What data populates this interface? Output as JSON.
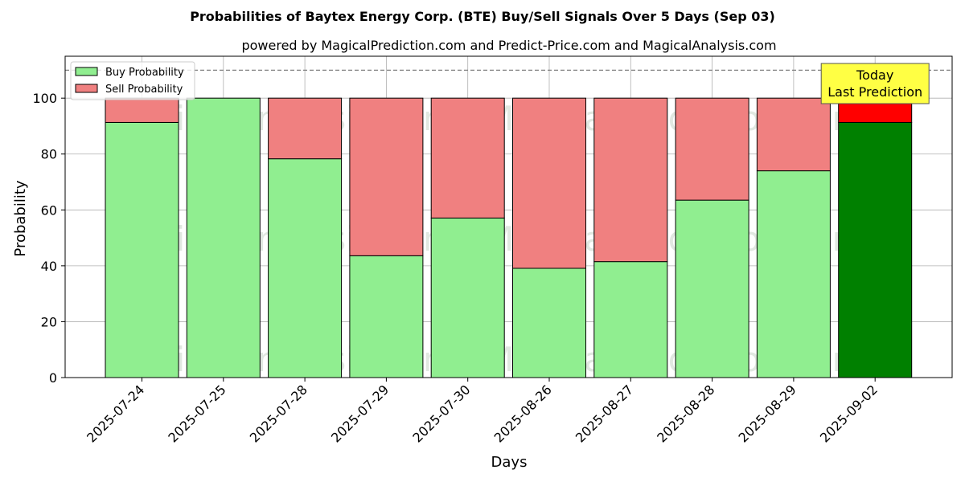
{
  "chart_data": {
    "type": "bar",
    "stacked": true,
    "title": "Probabilities of Baytex Energy Corp. (BTE) Buy/Sell Signals Over 5 Days (Sep 03)",
    "subtitle": "powered by MagicalPrediction.com and Predict-Price.com and MagicalAnalysis.com",
    "xlabel": "Days",
    "ylabel": "Probability",
    "ylim": [
      0,
      115
    ],
    "yticks": [
      0,
      20,
      40,
      60,
      80,
      100
    ],
    "reference_line": 110,
    "grid": true,
    "legend_position": "top-left",
    "categories": [
      "2025-07-24",
      "2025-07-25",
      "2025-07-28",
      "2025-07-29",
      "2025-07-30",
      "2025-08-26",
      "2025-08-27",
      "2025-08-28",
      "2025-08-29",
      "2025-09-02"
    ],
    "series": [
      {
        "name": "Buy Probability",
        "color": "#90ee90",
        "values": [
          91.3,
          100,
          78.3,
          43.6,
          57.1,
          39.1,
          41.5,
          63.5,
          74.0,
          91.3
        ]
      },
      {
        "name": "Sell Probability",
        "color": "#f08080",
        "values": [
          8.7,
          0,
          21.7,
          56.4,
          42.9,
          60.9,
          58.5,
          36.5,
          26.0,
          8.7
        ]
      }
    ],
    "highlight": {
      "index": 9,
      "buy_color": "#008000",
      "sell_color": "#ff0000"
    },
    "annotation": {
      "lines": [
        "Today",
        "Last Prediction"
      ],
      "color": "#ffff44"
    },
    "watermarks": [
      "MagicalAnalysis.com",
      "MagicalPrediction.com"
    ]
  }
}
